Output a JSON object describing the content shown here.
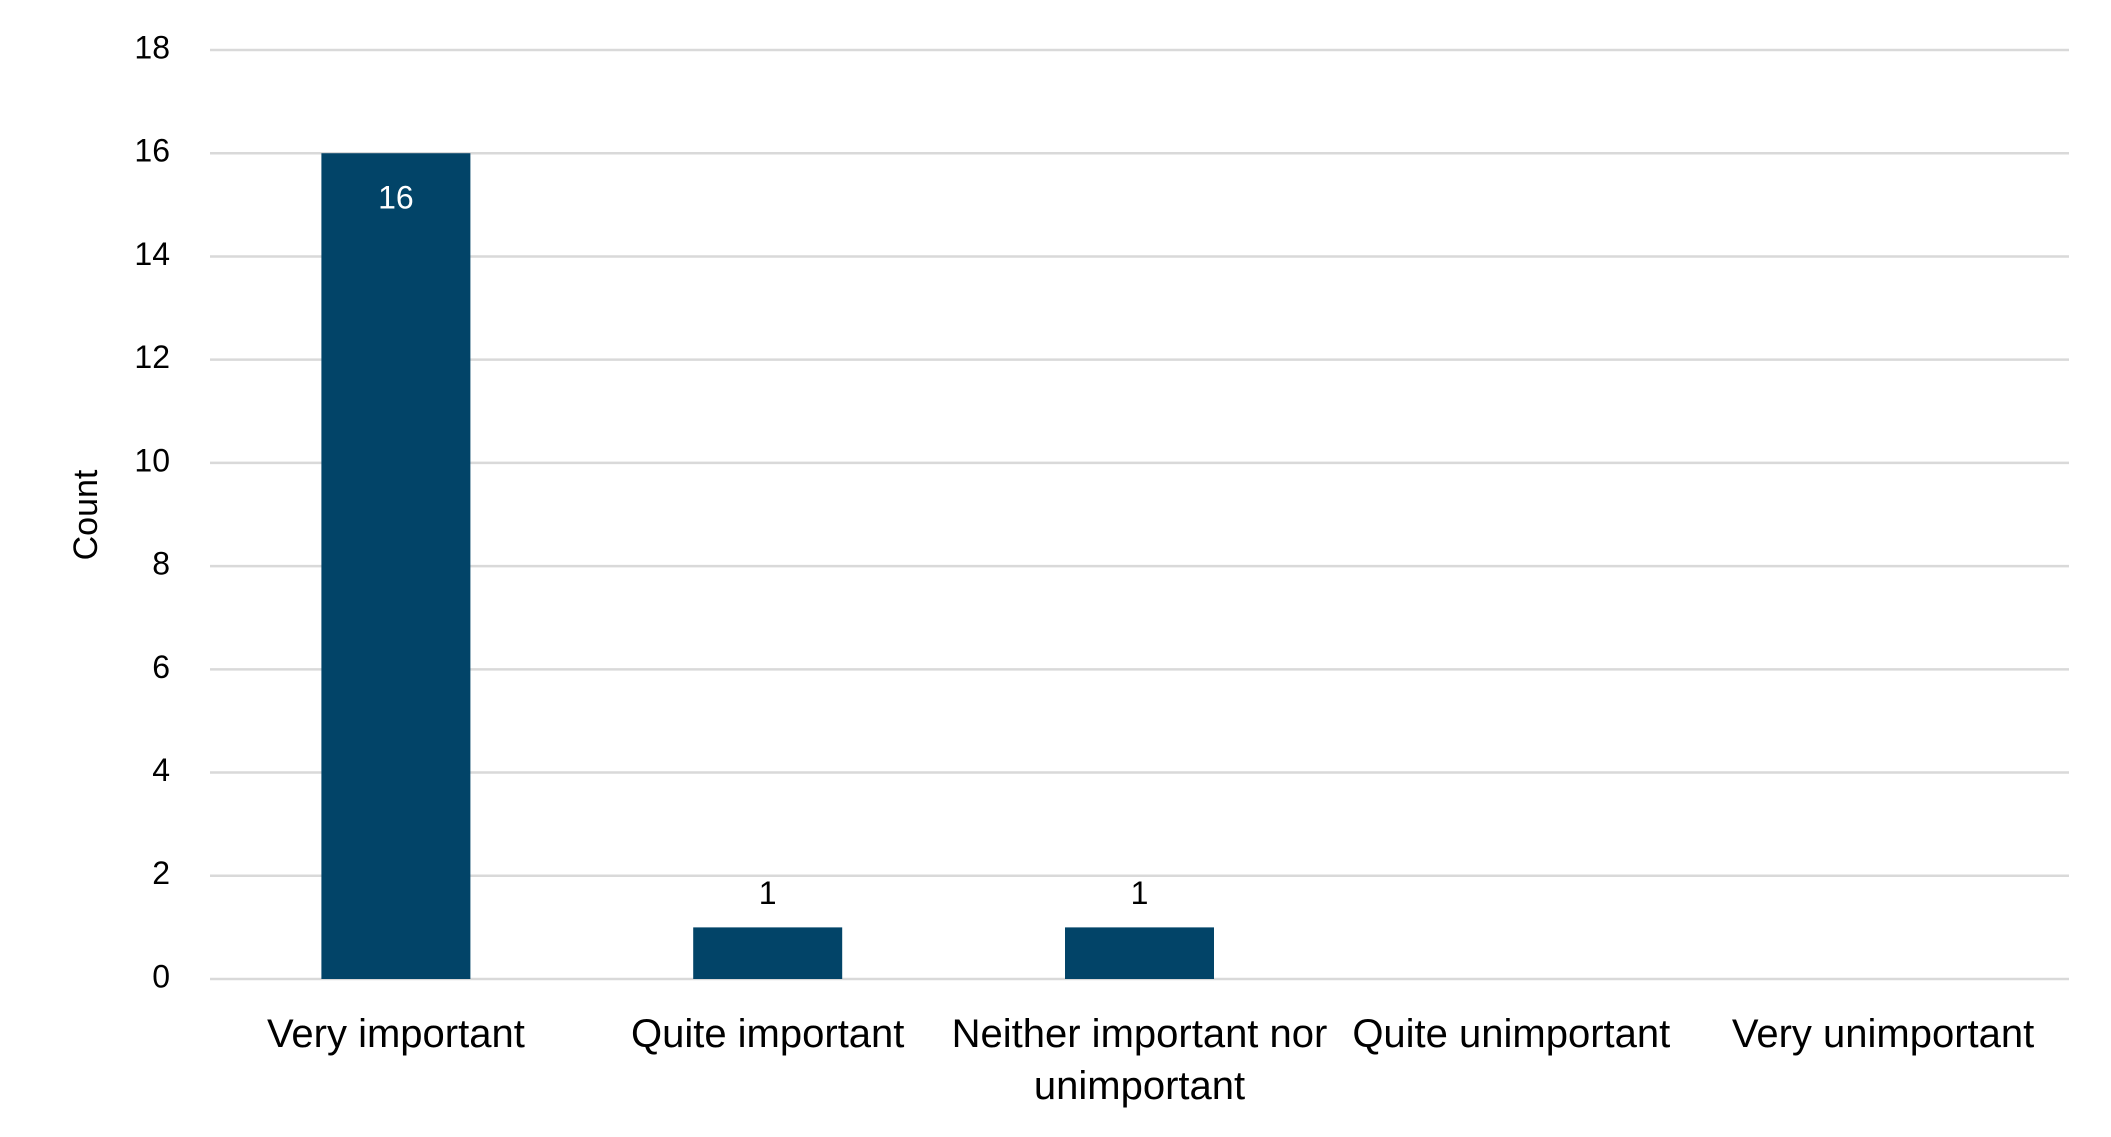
{
  "chart_data": {
    "type": "bar",
    "y_label": "Count",
    "categories": [
      "Very important",
      "Quite important",
      "Neither important nor unimportant",
      "Quite unimportant",
      "Very unimportant"
    ],
    "values": [
      16,
      1,
      1,
      null,
      null
    ],
    "color": "#024468",
    "ylim": [
      0,
      18
    ],
    "yticks": [
      0,
      2,
      4,
      6,
      8,
      10,
      12,
      14,
      16,
      18
    ],
    "grid": true
  }
}
